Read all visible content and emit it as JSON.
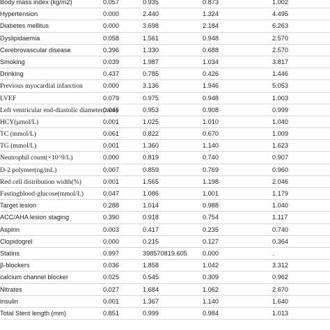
{
  "rows": [
    {
      "label": "Body mass index (kg/m2)",
      "p": "0.057",
      "or": "0.935",
      "lower": "0.873",
      "upper": "1.002"
    },
    {
      "label": "Hypertension",
      "p": "0.000",
      "or": "2.440",
      "lower": "1.324",
      "upper": "4.495"
    },
    {
      "label": "Diabetes mellitus",
      "p": "0.000",
      "or": "3.698",
      "lower": "2.184",
      "upper": "6.263"
    },
    {
      "label": "Dyslipidaemia",
      "p": "0.058",
      "or": "1.561",
      "lower": "0.948",
      "upper": "2.570"
    },
    {
      "label": "Cerebrovascular disease",
      "p": "0.396",
      "or": "1.330",
      "lower": "0.688",
      "upper": "2.570"
    },
    {
      "label": "Smoking",
      "p": "0.039",
      "or": "1.987",
      "lower": "1.034",
      "upper": "3.817"
    },
    {
      "label": "Drinking",
      "p": "0.437",
      "or": "0.785",
      "lower": "0.426",
      "upper": "1.446"
    },
    {
      "label": "Previous myocardial infarction",
      "p": "0.000",
      "or": "3.136",
      "lower": "1.946",
      "upper": "5.053"
    },
    {
      "label": "LVEF",
      "p": "0.079",
      "or": "0.975",
      "lower": "0.948",
      "upper": "1.003"
    },
    {
      "label": "Left ventricular end-diastolic diameter(mm)",
      "p": "0.046",
      "or": "0.953",
      "lower": "0.908",
      "upper": "0.999"
    },
    {
      "label": "HCY(μmol/L)",
      "p": "0.001",
      "or": "1.025",
      "lower": "1.010",
      "upper": "1.040"
    },
    {
      "label": "TC (mmol/L)",
      "p": "0.061",
      "or": "0.822",
      "lower": "0.670",
      "upper": "1.009"
    },
    {
      "label": "TG (mmol/L)",
      "p": "0.001",
      "or": "1.360",
      "lower": "1.140",
      "upper": "1.623"
    },
    {
      "label": "Neutrophil count(×10^9/L)",
      "p": "0.000",
      "or": "0.819",
      "lower": "0.740",
      "upper": "0.907"
    },
    {
      "label": "D-2 polymer(ng/mL)",
      "p": "0.007",
      "or": "0.859",
      "lower": "0.769",
      "upper": "0.960"
    },
    {
      "label": "Red cell distribution width(%)",
      "p": "0.001",
      "or": "1.565",
      "lower": "1.198",
      "upper": "2.046"
    },
    {
      "label": "Fastingblood-glucose(mmol/L)",
      "p": "0.047",
      "or": "1.086",
      "lower": "1.001",
      "upper": "1.179"
    },
    {
      "label": "Target lesion",
      "p": "0.288",
      "or": "1.014",
      "lower": "0.988",
      "upper": "1.040"
    },
    {
      "label": "ACC/AHA lesion staging",
      "p": "0.390",
      "or": "0.918",
      "lower": "0.754",
      "upper": "1.117"
    },
    {
      "label": "Aspirin",
      "p": "0.003",
      "or": "0.417",
      "lower": "0.235",
      "upper": "0.740"
    },
    {
      "label": "Clopidogrel",
      "p": "0.000",
      "or": "0.215",
      "lower": "0.127",
      "upper": "0.364"
    },
    {
      "label": "Statins",
      "p": "0.997",
      "or": "398570819.605",
      "lower": "0.000",
      "upper": "."
    },
    {
      "label": "β-blockers",
      "p": "0.036",
      "or": "1.858",
      "lower": "1.042",
      "upper": "3.312"
    },
    {
      "label": "calcium channel blocker",
      "p": "0.025",
      "or": "0.545",
      "lower": "0.309",
      "upper": "0.962"
    },
    {
      "label": "Nitrates",
      "p": "0.027",
      "or": "1.684",
      "lower": "1.062",
      "upper": "2.670"
    },
    {
      "label": "insulin",
      "p": "0.001",
      "or": "1.367",
      "lower": "1.140",
      "upper": "1.640"
    },
    {
      "label": "Total Stent length (mm)",
      "p": "0.851",
      "or": "0.999",
      "lower": "0.984",
      "upper": "1.013"
    }
  ]
}
